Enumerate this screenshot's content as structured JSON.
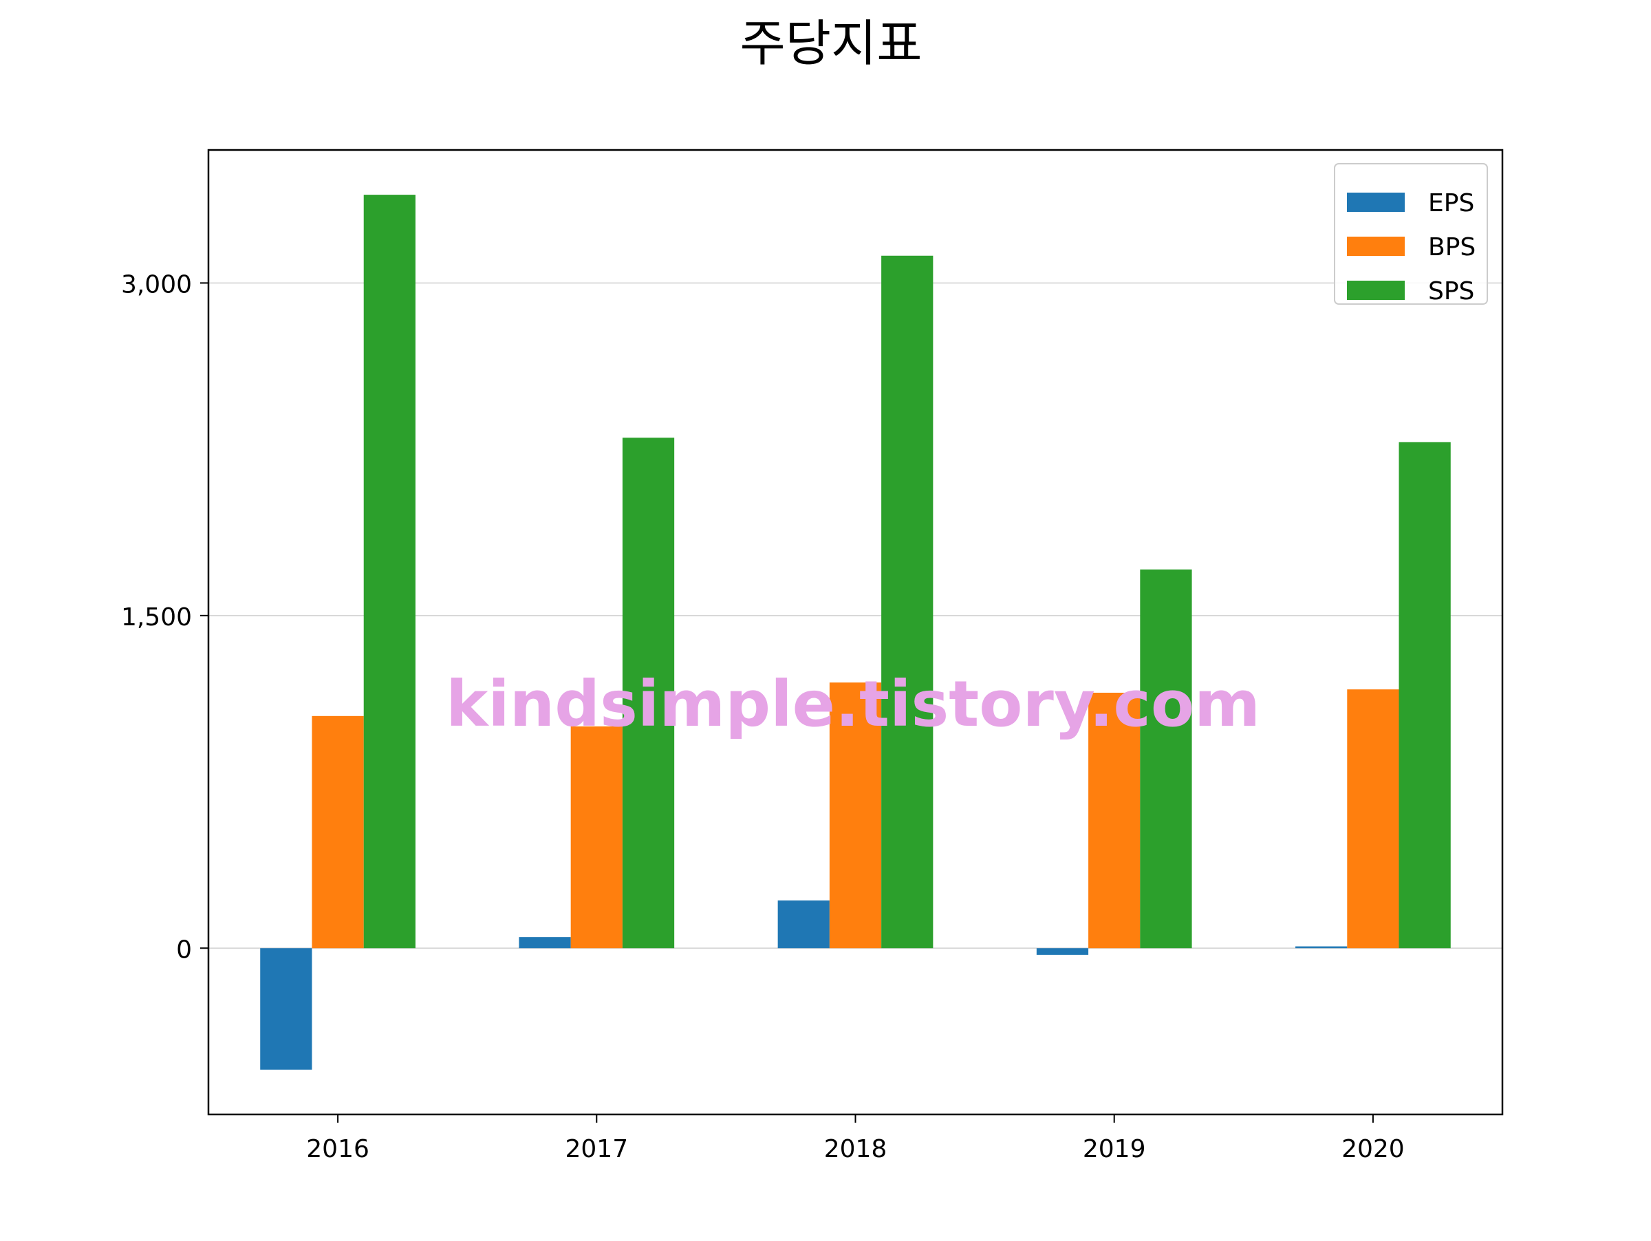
{
  "chart_data": {
    "type": "bar",
    "title": "주당지표",
    "xlabel": "",
    "ylabel": "",
    "categories": [
      "2016",
      "2017",
      "2018",
      "2019",
      "2020"
    ],
    "series": [
      {
        "name": "EPS",
        "color": "#1f77b4",
        "values": [
          -548,
          50,
          215,
          -30,
          8
        ]
      },
      {
        "name": "BPS",
        "color": "#ff7f0e",
        "values": [
          1047,
          1000,
          1198,
          1152,
          1167
        ]
      },
      {
        "name": "SPS",
        "color": "#2ca02c",
        "values": [
          3398,
          2302,
          3123,
          1708,
          2282
        ]
      }
    ],
    "yticks": [
      0,
      1500,
      3000
    ],
    "ytick_labels": [
      "0",
      "1,500",
      "3,000"
    ],
    "ylim": [
      -750,
      3600
    ],
    "grid": "horizontal",
    "legend_position": "top-right",
    "watermark": "kindsimple.tistory.com",
    "watermark_color": "#e6a4e6"
  }
}
